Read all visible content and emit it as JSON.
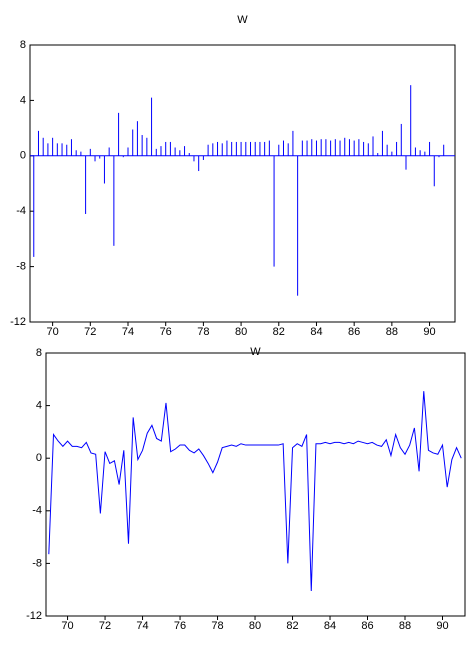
{
  "chart_data": [
    {
      "type": "bar",
      "title": "W",
      "color": "#0000ff",
      "x": [
        69,
        69.25,
        69.5,
        69.75,
        70,
        70.25,
        70.5,
        70.75,
        71,
        71.25,
        71.5,
        71.75,
        72,
        72.25,
        72.5,
        72.75,
        73,
        73.25,
        73.5,
        73.75,
        74,
        74.25,
        74.5,
        74.75,
        75,
        75.25,
        75.5,
        75.75,
        76,
        76.25,
        76.5,
        76.75,
        77,
        77.25,
        77.5,
        77.75,
        78,
        78.25,
        78.5,
        78.75,
        79,
        79.25,
        79.5,
        79.75,
        80,
        80.25,
        80.5,
        80.75,
        81,
        81.25,
        81.5,
        81.75,
        82,
        82.25,
        82.5,
        82.75,
        83,
        83.25,
        83.5,
        83.75,
        84,
        84.25,
        84.5,
        84.75,
        85,
        85.25,
        85.5,
        85.75,
        86,
        86.25,
        86.5,
        86.75,
        87,
        87.25,
        87.5,
        87.75,
        88,
        88.25,
        88.5,
        88.75,
        89,
        89.25,
        89.5,
        89.75,
        90,
        90.25,
        90.5,
        90.75,
        91
      ],
      "values": [
        -7.3,
        1.8,
        1.3,
        0.9,
        1.3,
        0.9,
        0.9,
        0.8,
        1.2,
        0.4,
        0.3,
        -4.2,
        0.5,
        -0.4,
        -0.2,
        -2.0,
        0.6,
        -6.5,
        3.1,
        -0.1,
        0.6,
        1.9,
        2.5,
        1.5,
        1.3,
        4.2,
        0.5,
        0.7,
        1.0,
        1.0,
        0.6,
        0.4,
        0.7,
        0.2,
        -0.4,
        -1.1,
        -0.3,
        0.8,
        0.9,
        1.0,
        0.9,
        1.1,
        1.0,
        1.0,
        1.0,
        1.0,
        1.0,
        1.0,
        1.0,
        1.0,
        1.1,
        -8.0,
        0.8,
        1.1,
        0.9,
        1.8,
        -10.1,
        1.1,
        1.1,
        1.2,
        1.1,
        1.2,
        1.2,
        1.1,
        1.2,
        1.1,
        1.3,
        1.2,
        1.1,
        1.2,
        1.0,
        0.9,
        1.4,
        0.2,
        1.8,
        0.8,
        0.3,
        1.0,
        2.3,
        -1.0,
        5.1,
        0.6,
        0.4,
        0.3,
        1.0,
        -2.2,
        -0.1,
        0.8,
        0.0
      ],
      "xlim": [
        68.8,
        91.35
      ],
      "xticks": [
        70,
        72,
        74,
        76,
        78,
        80,
        82,
        84,
        86,
        88,
        90
      ],
      "ylim": [
        -12,
        8
      ],
      "yticks": [
        8,
        4,
        0,
        -4,
        -8,
        -12
      ],
      "grid": false
    },
    {
      "type": "line",
      "title": "W",
      "color": "#0000ff",
      "x": [
        69,
        69.25,
        69.5,
        69.75,
        70,
        70.25,
        70.5,
        70.75,
        71,
        71.25,
        71.5,
        71.75,
        72,
        72.25,
        72.5,
        72.75,
        73,
        73.25,
        73.5,
        73.75,
        74,
        74.25,
        74.5,
        74.75,
        75,
        75.25,
        75.5,
        75.75,
        76,
        76.25,
        76.5,
        76.75,
        77,
        77.25,
        77.5,
        77.75,
        78,
        78.25,
        78.5,
        78.75,
        79,
        79.25,
        79.5,
        79.75,
        80,
        80.25,
        80.5,
        80.75,
        81,
        81.25,
        81.5,
        81.75,
        82,
        82.25,
        82.5,
        82.75,
        83,
        83.25,
        83.5,
        83.75,
        84,
        84.25,
        84.5,
        84.75,
        85,
        85.25,
        85.5,
        85.75,
        86,
        86.25,
        86.5,
        86.75,
        87,
        87.25,
        87.5,
        87.75,
        88,
        88.25,
        88.5,
        88.75,
        89,
        89.25,
        89.5,
        89.75,
        90,
        90.25,
        90.5,
        90.75,
        91
      ],
      "values": [
        -7.3,
        1.8,
        1.3,
        0.9,
        1.3,
        0.9,
        0.9,
        0.8,
        1.2,
        0.4,
        0.3,
        -4.2,
        0.5,
        -0.4,
        -0.2,
        -2.0,
        0.6,
        -6.5,
        3.1,
        -0.1,
        0.6,
        1.9,
        2.5,
        1.5,
        1.3,
        4.2,
        0.5,
        0.7,
        1.0,
        1.0,
        0.6,
        0.4,
        0.7,
        0.2,
        -0.4,
        -1.1,
        -0.3,
        0.8,
        0.9,
        1.0,
        0.9,
        1.1,
        1.0,
        1.0,
        1.0,
        1.0,
        1.0,
        1.0,
        1.0,
        1.0,
        1.1,
        -8.0,
        0.8,
        1.1,
        0.9,
        1.8,
        -10.1,
        1.1,
        1.1,
        1.2,
        1.1,
        1.2,
        1.2,
        1.1,
        1.2,
        1.1,
        1.3,
        1.2,
        1.1,
        1.2,
        1.0,
        0.9,
        1.4,
        0.2,
        1.8,
        0.8,
        0.3,
        1.0,
        2.3,
        -1.0,
        5.1,
        0.6,
        0.4,
        0.3,
        1.0,
        -2.2,
        -0.1,
        0.8,
        0.0
      ],
      "xlim": [
        68.85,
        91.2
      ],
      "xticks": [
        70,
        72,
        74,
        76,
        78,
        80,
        82,
        84,
        86,
        88,
        90
      ],
      "ylim": [
        -12,
        8
      ],
      "yticks": [
        8,
        4,
        0,
        -4,
        -8,
        -12
      ],
      "grid": false
    }
  ]
}
